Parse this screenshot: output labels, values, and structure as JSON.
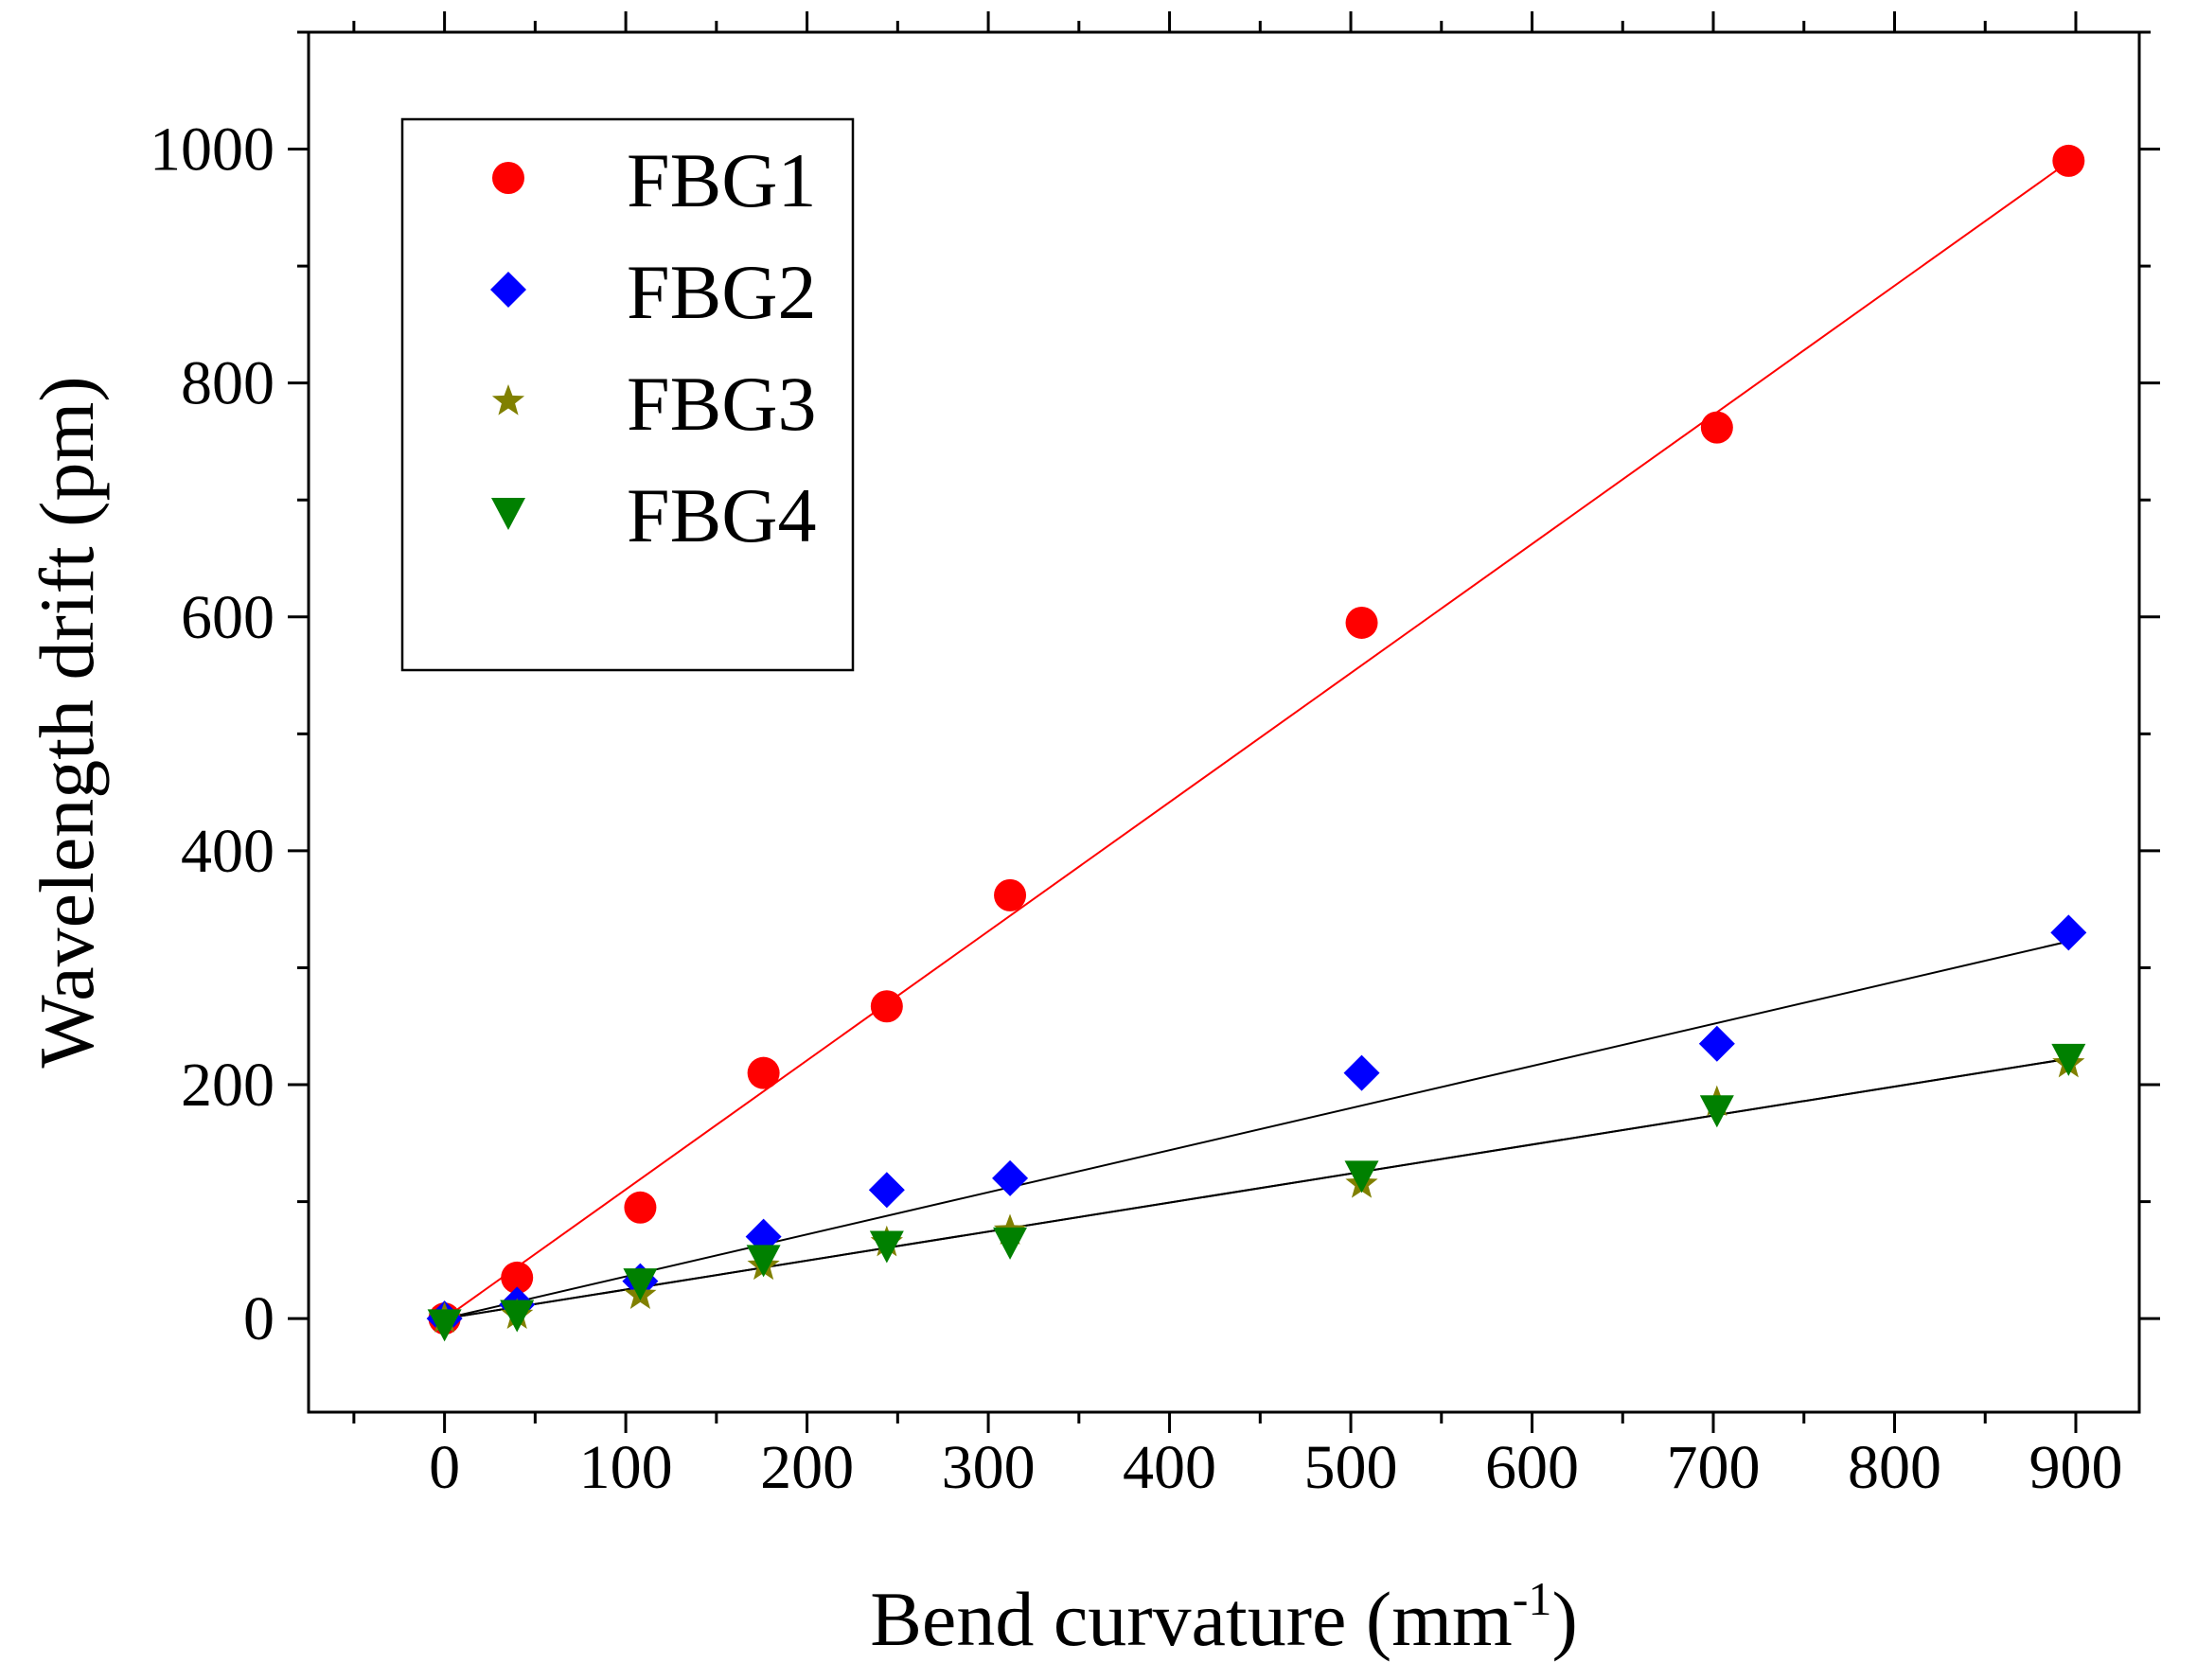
{
  "chart_data": {
    "type": "scatter",
    "title": "",
    "xlabel": "Bend curvature (mm",
    "xlabel_sup": "-1",
    "xlabel_close": ")",
    "ylabel": "Wavelength drift (pm)",
    "xlim": [
      -75,
      935
    ],
    "ylim": [
      -80,
      1100
    ],
    "xticks": [
      0,
      100,
      200,
      300,
      400,
      500,
      600,
      700,
      800,
      900
    ],
    "yticks": [
      0,
      200,
      400,
      600,
      800,
      1000
    ],
    "x": [
      0,
      40,
      108,
      176,
      244,
      312,
      506,
      702,
      896
    ],
    "series": [
      {
        "name": "FBG1",
        "marker": "circle",
        "color": "#ff0000",
        "fit_color": "#ff0000",
        "values": [
          0,
          35,
          95,
          210,
          267,
          362,
          595,
          762,
          990
        ],
        "fit": [
          0,
          1.104
        ]
      },
      {
        "name": "FBG2",
        "marker": "diamond",
        "color": "#0000ff",
        "fit_color": "#000000",
        "values": [
          0,
          12,
          32,
          70,
          110,
          120,
          210,
          235,
          330
        ],
        "fit": [
          0,
          0.36
        ]
      },
      {
        "name": "FBG3",
        "marker": "star",
        "color": "#808000",
        "fit_color": "#000000",
        "values": [
          0,
          3,
          20,
          45,
          65,
          75,
          115,
          185,
          218
        ],
        "fit": [
          0,
          0.248
        ]
      },
      {
        "name": "FBG4",
        "marker": "triangle-down",
        "color": "#008000",
        "fit_color": "#000000",
        "values": [
          -5,
          3,
          30,
          50,
          62,
          65,
          122,
          178,
          222
        ],
        "fit": [
          0,
          0.248
        ]
      }
    ],
    "legend_position": "top-left",
    "grid": false
  }
}
